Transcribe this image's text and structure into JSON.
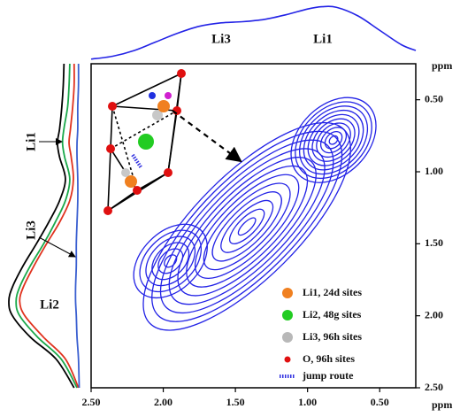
{
  "chart_data": {
    "type": "contour",
    "x_unit": "ppm",
    "y_unit": "ppm",
    "xlim": [
      2.5,
      0.25
    ],
    "ylim": [
      0.25,
      2.5
    ],
    "xticks": [
      {
        "value": 2.5,
        "label": "2.50"
      },
      {
        "value": 2.0,
        "label": "2.00"
      },
      {
        "value": 1.5,
        "label": "1.50"
      },
      {
        "value": 1.0,
        "label": "1.00"
      },
      {
        "value": 0.5,
        "label": "0.50"
      }
    ],
    "yticks": [
      {
        "value": 0.5,
        "label": "0.50"
      },
      {
        "value": 1.0,
        "label": "1.00"
      },
      {
        "value": 1.5,
        "label": "1.50"
      },
      {
        "value": 2.0,
        "label": "2.00"
      },
      {
        "value": 2.5,
        "label": "2.50"
      }
    ],
    "color": "#2323e6",
    "peaks": [
      {
        "x": 0.82,
        "y": 0.78,
        "length": 0.34,
        "breadth": 0.24,
        "levels": 10
      },
      {
        "x": 1.42,
        "y": 1.38,
        "length": 0.95,
        "breadth": 0.36,
        "levels": 12
      },
      {
        "x": 1.95,
        "y": 1.62,
        "length": 0.3,
        "breadth": 0.2,
        "levels": 6
      }
    ],
    "top_projection": {
      "color": "#2323e6",
      "x": [
        2.5,
        2.35,
        2.2,
        2.05,
        1.9,
        1.75,
        1.6,
        1.45,
        1.3,
        1.15,
        1.0,
        0.9,
        0.8,
        0.65,
        0.5,
        0.35,
        0.25
      ],
      "values": [
        0.05,
        0.1,
        0.2,
        0.35,
        0.5,
        0.62,
        0.68,
        0.7,
        0.74,
        0.82,
        0.92,
        0.96,
        0.95,
        0.8,
        0.55,
        0.3,
        0.2
      ],
      "labels": [
        "Li3",
        "Li1"
      ]
    },
    "side_projection": {
      "y": [
        0.25,
        0.4,
        0.55,
        0.7,
        0.8,
        0.9,
        1.05,
        1.2,
        1.35,
        1.5,
        1.65,
        1.8,
        1.9,
        2.0,
        2.15,
        2.3,
        2.5
      ],
      "series": [
        {
          "color": "#000000",
          "values": [
            0.24,
            0.25,
            0.27,
            0.3,
            0.33,
            0.3,
            0.22,
            0.3,
            0.45,
            0.62,
            0.8,
            0.95,
            1.0,
            0.95,
            0.7,
            0.35,
            0.1
          ]
        },
        {
          "color": "#1aa84a",
          "values": [
            0.16,
            0.17,
            0.19,
            0.24,
            0.26,
            0.23,
            0.16,
            0.22,
            0.36,
            0.52,
            0.7,
            0.85,
            0.9,
            0.85,
            0.6,
            0.28,
            0.06
          ]
        },
        {
          "color": "#e0321e",
          "values": [
            0.1,
            0.1,
            0.12,
            0.15,
            0.17,
            0.14,
            0.11,
            0.16,
            0.3,
            0.48,
            0.65,
            0.8,
            0.85,
            0.78,
            0.52,
            0.22,
            0.04
          ]
        },
        {
          "color": "#3a5fd0",
          "values": [
            0.04,
            0.04,
            0.05,
            0.05,
            0.06,
            0.06,
            0.05,
            0.05,
            0.06,
            0.07,
            0.07,
            0.08,
            0.08,
            0.07,
            0.06,
            0.04,
            0.03
          ]
        }
      ],
      "labels": [
        "Li1",
        "Li3",
        "Li2"
      ]
    },
    "legend": [
      {
        "name": "Li1, 24d sites",
        "color": "#f08020",
        "marker": "circle"
      },
      {
        "name": "Li2, 48g sites",
        "color": "#22cc22",
        "marker": "circle"
      },
      {
        "name": "Li3, 96h sites",
        "color": "#b8b8b8",
        "marker": "circle"
      },
      {
        "name": "O, 96h sites",
        "color": "#e01010",
        "marker": "dot"
      },
      {
        "name": "jump route",
        "color": "#3030e0",
        "marker": "stripe"
      }
    ]
  }
}
